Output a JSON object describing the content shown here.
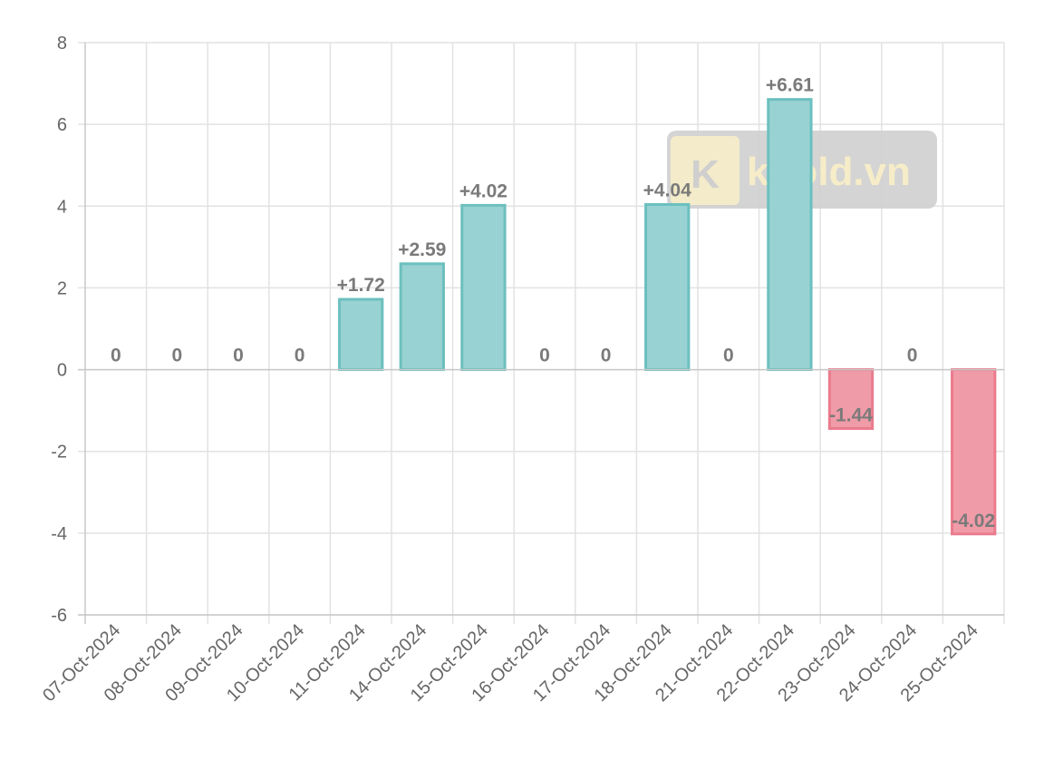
{
  "chart_data": {
    "type": "bar",
    "categories": [
      "07-Oct-2024",
      "08-Oct-2024",
      "09-Oct-2024",
      "10-Oct-2024",
      "11-Oct-2024",
      "14-Oct-2024",
      "15-Oct-2024",
      "16-Oct-2024",
      "17-Oct-2024",
      "18-Oct-2024",
      "21-Oct-2024",
      "22-Oct-2024",
      "23-Oct-2024",
      "24-Oct-2024",
      "25-Oct-2024"
    ],
    "values": [
      0,
      0,
      0,
      0,
      1.72,
      2.59,
      4.02,
      0,
      0,
      4.04,
      0,
      6.61,
      -1.44,
      0,
      -4.02
    ],
    "data_labels": [
      "0",
      "0",
      "0",
      "0",
      "+1.72",
      "+2.59",
      "+4.02",
      "0",
      "0",
      "+4.04",
      "0",
      "+6.61",
      "-1.44",
      "0",
      "-4.02"
    ],
    "ylim": [
      -6,
      8
    ],
    "yticks": [
      8,
      6,
      4,
      2,
      0,
      -2,
      -4,
      -6
    ],
    "grid": true,
    "colors": {
      "positive_fill": "#99d2d2",
      "positive_stroke": "#6cc0bf",
      "negative_fill": "#f09ba8",
      "negative_stroke": "#ea7b8d"
    }
  },
  "watermark": {
    "logo_letter": "K",
    "text": "kgold.vn"
  }
}
